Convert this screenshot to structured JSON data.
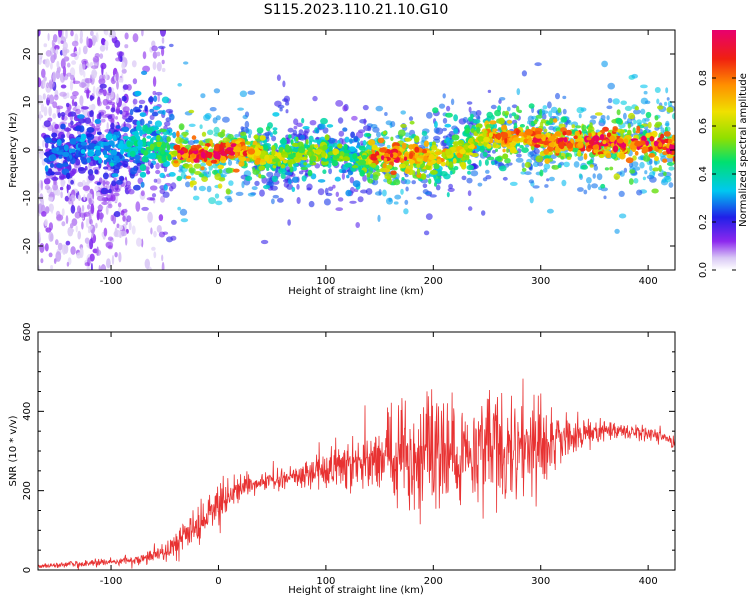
{
  "figure": {
    "title": "S115.2023.110.21.10.G10"
  },
  "colors": {
    "snr_line": "#e83232",
    "axis": "#000000",
    "colormap": [
      "#ffffff",
      "#d9c8f5",
      "#8c28ee",
      "#2020e8",
      "#00c8f0",
      "#00e070",
      "#90e000",
      "#f0e000",
      "#ff9000",
      "#f02010",
      "#f00060",
      "#e8006e"
    ]
  },
  "chart_data": [
    {
      "type": "heatmap",
      "xlabel": "Height of straight line (km)",
      "ylabel": "Frequency (Hz)",
      "xlim": [
        -168,
        425
      ],
      "ylim": [
        -25,
        25
      ],
      "x_ticks": [
        "-100",
        "0",
        "100",
        "200",
        "300",
        "400"
      ],
      "x_tick_values": [
        -100,
        0,
        100,
        200,
        300,
        400
      ],
      "y_ticks": [
        "-20",
        "-10",
        "0",
        "10",
        "20"
      ],
      "y_tick_values": [
        -20,
        -10,
        0,
        10,
        20
      ],
      "ridge": {
        "x": [
          -150,
          -125,
          -100,
          -80,
          -65,
          -55,
          -45,
          -35,
          -20,
          0,
          15,
          25,
          35,
          50,
          65,
          80,
          95,
          105,
          115,
          125,
          135,
          145,
          160,
          180,
          200,
          215,
          230,
          245,
          260,
          275,
          290,
          300,
          320,
          340,
          360,
          380,
          400,
          425
        ],
        "y": [
          -0.5,
          0.5,
          -0.5,
          1.5,
          2.0,
          0.5,
          -0.3,
          -0.5,
          -0.8,
          -0.8,
          0.2,
          0.0,
          -1.0,
          -1.5,
          -1.0,
          -1.0,
          -0.5,
          -0.5,
          -1.2,
          -2.0,
          -2.0,
          -1.5,
          -1.5,
          -1.2,
          -1.5,
          -1.0,
          0.0,
          2.5,
          2.8,
          2.5,
          3.0,
          2.0,
          1.8,
          1.5,
          1.5,
          1.2,
          1.5,
          0.5
        ],
        "normalized_amplitude": [
          0.4,
          0.45,
          0.5,
          0.6,
          0.65,
          0.75,
          0.85,
          0.95,
          1.0,
          1.0,
          0.9,
          0.85,
          0.8,
          0.7,
          0.6,
          0.6,
          0.65,
          0.6,
          0.55,
          0.5,
          0.6,
          0.9,
          0.95,
          0.85,
          0.75,
          0.7,
          0.7,
          0.75,
          0.8,
          0.85,
          0.85,
          0.9,
          0.95,
          0.95,
          0.95,
          0.95,
          0.95,
          1.0
        ]
      },
      "colorbar": {
        "label": "Normalized spectral amplitude",
        "range": [
          0,
          1
        ],
        "ticks": [
          "0.0",
          "0.2",
          "0.4",
          "0.6",
          "0.8"
        ],
        "tick_values": [
          0,
          0.2,
          0.4,
          0.6,
          0.8
        ]
      }
    },
    {
      "type": "line",
      "xlabel": "Height of straight line (km)",
      "ylabel": "SNR (10 * v/v)",
      "xlim": [
        -168,
        425
      ],
      "ylim": [
        0,
        600
      ],
      "x_ticks": [
        "-100",
        "0",
        "100",
        "200",
        "300",
        "400"
      ],
      "x_tick_values": [
        -100,
        0,
        100,
        200,
        300,
        400
      ],
      "y_ticks": [
        "0",
        "200",
        "400",
        "600"
      ],
      "y_tick_values": [
        0,
        200,
        400,
        600
      ],
      "series": [
        {
          "x": [
            -168,
            -150,
            -125,
            -100,
            -80,
            -60,
            -50,
            -40,
            -30,
            -20,
            -10,
            0,
            10,
            20,
            30,
            40,
            50,
            60,
            70,
            80,
            90,
            100,
            110,
            120,
            130,
            140,
            150,
            160,
            170,
            180,
            190,
            200,
            210,
            220,
            230,
            240,
            250,
            260,
            270,
            280,
            290,
            300,
            310,
            320,
            330,
            340,
            350,
            360,
            370,
            380,
            390,
            400,
            410,
            425
          ],
          "y": [
            10,
            12,
            15,
            20,
            25,
            35,
            45,
            60,
            85,
            110,
            140,
            160,
            185,
            205,
            210,
            220,
            225,
            230,
            235,
            238,
            240,
            245,
            255,
            255,
            262,
            270,
            275,
            280,
            285,
            290,
            292,
            290,
            280,
            285,
            290,
            295,
            300,
            300,
            305,
            300,
            310,
            315,
            330,
            335,
            340,
            345,
            350,
            352,
            352,
            350,
            348,
            345,
            340,
            320
          ],
          "spread": [
            5,
            6,
            8,
            10,
            12,
            15,
            20,
            25,
            35,
            45,
            45,
            45,
            40,
            30,
            25,
            25,
            25,
            25,
            30,
            35,
            40,
            45,
            50,
            55,
            65,
            80,
            95,
            110,
            130,
            140,
            150,
            140,
            120,
            110,
            110,
            120,
            140,
            150,
            140,
            130,
            120,
            100,
            80,
            60,
            45,
            35,
            30,
            25,
            22,
            20,
            20,
            20,
            20,
            18
          ]
        }
      ]
    }
  ]
}
